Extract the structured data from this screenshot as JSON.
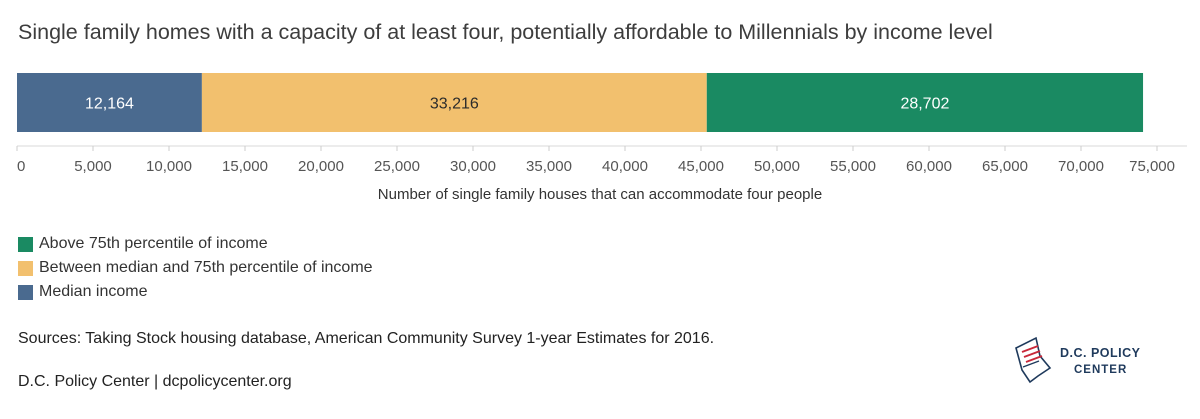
{
  "chart_data": {
    "type": "bar",
    "orientation": "horizontal",
    "stacked": true,
    "title": "Single family homes with a capacity of at least four, potentially affordable to Millennials by income level",
    "xlabel": "Number of single family houses that can accommodate four people",
    "ylabel": "",
    "xlim": [
      0,
      75000
    ],
    "x_ticks": [
      "0",
      "5,000",
      "10,000",
      "15,000",
      "20,000",
      "25,000",
      "30,000",
      "35,000",
      "40,000",
      "45,000",
      "50,000",
      "55,000",
      "60,000",
      "65,000",
      "70,000",
      "75,000"
    ],
    "grid": false,
    "legend_position": "bottom-left",
    "segments": [
      {
        "name": "Median income",
        "value": 12164,
        "label": "12,164",
        "color": "#4a6a8f",
        "label_color": "#ffffff"
      },
      {
        "name": "Between median and 75th percentile of income",
        "value": 33216,
        "label": "33,216",
        "color": "#f2c06e",
        "label_color": "#2b2b2b"
      },
      {
        "name": "Above 75th percentile of income",
        "value": 28702,
        "label": "28,702",
        "color": "#1a8a62",
        "label_color": "#ffffff"
      }
    ]
  },
  "legend": [
    {
      "label": "Above 75th percentile of income",
      "color": "#1a8a62"
    },
    {
      "label": "Between median and 75th percentile of income",
      "color": "#f2c06e"
    },
    {
      "label": "Median income",
      "color": "#4a6a8f"
    }
  ],
  "footer": {
    "source": "Sources: Taking Stock housing database, American Community Survey 1-year Estimates for 2016.",
    "credit": "D.C. Policy Center | dcpolicycenter.org"
  },
  "logo": {
    "line1": "D.C. POLICY",
    "line2": "CENTER",
    "icon": "dc-map-icon"
  }
}
